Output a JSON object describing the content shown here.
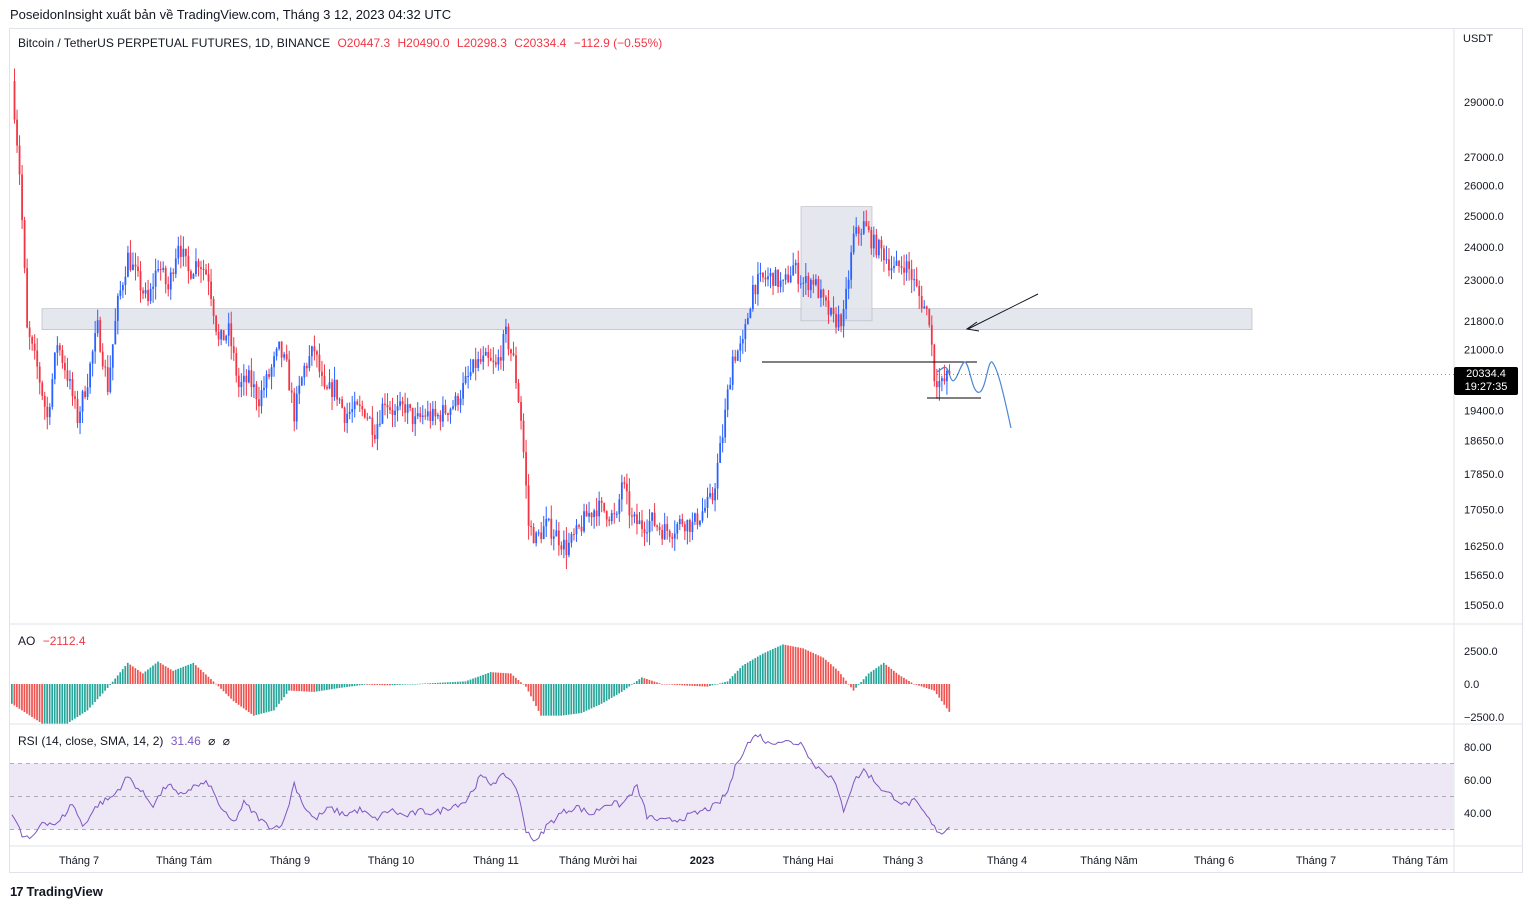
{
  "publisher_line": "PoseidonInsight xuất bản về TradingView.com, Tháng 3 12, 2023 04:32 UTC",
  "main_legend": {
    "symbol": "Bitcoin / TetherUS PERPETUAL FUTURES, 1D, BINANCE",
    "open": "O20447.3",
    "high": "H20490.0",
    "low": "L20298.3",
    "close": "C20334.4",
    "change": "−112.9 (−0.55%)"
  },
  "currency": "USDT",
  "last_price": {
    "price": "20334.4",
    "countdown": "19:27:35"
  },
  "ao_legend": {
    "name": "AO",
    "value": "−2112.4"
  },
  "rsi_legend": {
    "name": "RSI (14, close, SMA, 14, 2)",
    "value": "31.46",
    "extra1": "⌀",
    "extra2": "⌀"
  },
  "footer": {
    "brand_mark": "17",
    "brand": "TradingView"
  },
  "colors": {
    "up": "#2962ff",
    "down": "#f23645",
    "ao_up": "#26a69a",
    "ao_down": "#ef5350",
    "rsi": "#7e57c2",
    "rsi_band": "#ede7f6",
    "zone": "#e0e3eb",
    "projection": "#4a86d6"
  },
  "chart_data": [
    {
      "type": "candlestick",
      "title": "Bitcoin / TetherUS PERPETUAL FUTURES, 1D, BINANCE",
      "y_scale": "log",
      "y_ticks": [
        29000.0,
        27000.0,
        26000.0,
        25000.0,
        24000.0,
        23000.0,
        21800.0,
        21000.0,
        19400.0,
        18650.0,
        17850.0,
        17050.0,
        16250.0,
        15650.0,
        15050.0
      ],
      "x_ticks": [
        "Tháng 7",
        "Tháng Tám",
        "Tháng 9",
        "Tháng 10",
        "Tháng 11",
        "Tháng Mười hai",
        "2023",
        "Tháng Hai",
        "Tháng 3",
        "Tháng 4",
        "Tháng Năm",
        "Tháng 6",
        "Tháng 7",
        "Tháng Tám"
      ],
      "price_path": [
        [
          0,
          29800
        ],
        [
          3,
          26500
        ],
        [
          6,
          21500
        ],
        [
          10,
          20500
        ],
        [
          14,
          19200
        ],
        [
          18,
          21200
        ],
        [
          22,
          20300
        ],
        [
          26,
          19200
        ],
        [
          30,
          20200
        ],
        [
          34,
          21600
        ],
        [
          38,
          20000
        ],
        [
          42,
          22300
        ],
        [
          46,
          23700
        ],
        [
          50,
          23000
        ],
        [
          54,
          22300
        ],
        [
          58,
          23500
        ],
        [
          62,
          22700
        ],
        [
          66,
          24200
        ],
        [
          70,
          23200
        ],
        [
          74,
          23600
        ],
        [
          78,
          23100
        ],
        [
          82,
          21200
        ],
        [
          86,
          21500
        ],
        [
          90,
          20000
        ],
        [
          94,
          20200
        ],
        [
          98,
          19700
        ],
        [
          102,
          20300
        ],
        [
          106,
          21000
        ],
        [
          109,
          20500
        ],
        [
          112,
          19300
        ],
        [
          116,
          20500
        ],
        [
          120,
          21000
        ],
        [
          124,
          19800
        ],
        [
          128,
          20000
        ],
        [
          132,
          19300
        ],
        [
          136,
          19400
        ],
        [
          140,
          19400
        ],
        [
          144,
          18900
        ],
        [
          148,
          19700
        ],
        [
          152,
          19300
        ],
        [
          156,
          19500
        ],
        [
          160,
          19100
        ],
        [
          164,
          19300
        ],
        [
          168,
          19200
        ],
        [
          172,
          19400
        ],
        [
          176,
          19600
        ],
        [
          180,
          20100
        ],
        [
          184,
          20600
        ],
        [
          188,
          20700
        ],
        [
          192,
          20500
        ],
        [
          196,
          21400
        ],
        [
          199,
          20700
        ],
        [
          202,
          19200
        ],
        [
          205,
          16700
        ],
        [
          208,
          16400
        ],
        [
          212,
          16700
        ],
        [
          216,
          16500
        ],
        [
          220,
          16200
        ],
        [
          224,
          16500
        ],
        [
          228,
          16900
        ],
        [
          232,
          17100
        ],
        [
          236,
          17000
        ],
        [
          240,
          16800
        ],
        [
          242,
          17700
        ],
        [
          246,
          16800
        ],
        [
          250,
          16700
        ],
        [
          254,
          16800
        ],
        [
          258,
          16600
        ],
        [
          262,
          16600
        ],
        [
          266,
          16800
        ],
        [
          270,
          16700
        ],
        [
          274,
          17000
        ],
        [
          278,
          17300
        ],
        [
          282,
          18800
        ],
        [
          286,
          20800
        ],
        [
          290,
          21100
        ],
        [
          294,
          22800
        ],
        [
          298,
          23000
        ],
        [
          302,
          23100
        ],
        [
          306,
          22800
        ],
        [
          310,
          23400
        ],
        [
          314,
          22900
        ],
        [
          318,
          23000
        ],
        [
          322,
          22300
        ],
        [
          326,
          21800
        ],
        [
          330,
          21900
        ],
        [
          334,
          24300
        ],
        [
          338,
          24700
        ],
        [
          342,
          24100
        ],
        [
          346,
          23800
        ],
        [
          350,
          23300
        ],
        [
          354,
          23500
        ],
        [
          356,
          23300
        ],
        [
          360,
          22500
        ],
        [
          364,
          21900
        ],
        [
          366,
          20300
        ],
        [
          369,
          20050
        ],
        [
          372,
          20334
        ]
      ]
    },
    {
      "type": "bar",
      "title": "AO",
      "value": -2112.4,
      "y_ticks": [
        2500.0,
        0.0,
        -2500.0
      ],
      "profile": [
        [
          0,
          -1500
        ],
        [
          12,
          -3000
        ],
        [
          22,
          -3000
        ],
        [
          30,
          -2000
        ],
        [
          38,
          -300
        ],
        [
          46,
          1600
        ],
        [
          52,
          800
        ],
        [
          58,
          1700
        ],
        [
          64,
          1000
        ],
        [
          72,
          1600
        ],
        [
          80,
          200
        ],
        [
          88,
          -1300
        ],
        [
          96,
          -2400
        ],
        [
          104,
          -2000
        ],
        [
          110,
          -500
        ],
        [
          120,
          -600
        ],
        [
          130,
          -300
        ],
        [
          140,
          -50
        ],
        [
          150,
          -100
        ],
        [
          160,
          0
        ],
        [
          170,
          100
        ],
        [
          180,
          200
        ],
        [
          190,
          900
        ],
        [
          198,
          800
        ],
        [
          204,
          -200
        ],
        [
          210,
          -2400
        ],
        [
          218,
          -2400
        ],
        [
          226,
          -2200
        ],
        [
          234,
          -1500
        ],
        [
          242,
          -600
        ],
        [
          250,
          500
        ],
        [
          258,
          0
        ],
        [
          266,
          -100
        ],
        [
          276,
          -200
        ],
        [
          284,
          200
        ],
        [
          290,
          1400
        ],
        [
          298,
          2300
        ],
        [
          306,
          3000
        ],
        [
          314,
          2700
        ],
        [
          322,
          2000
        ],
        [
          328,
          1000
        ],
        [
          334,
          -500
        ],
        [
          340,
          800
        ],
        [
          346,
          1600
        ],
        [
          352,
          700
        ],
        [
          358,
          0
        ],
        [
          366,
          -500
        ],
        [
          372,
          -2112
        ]
      ]
    },
    {
      "type": "line",
      "title": "RSI (14, close, SMA, 14, 2)",
      "value": 31.46,
      "y_ticks": [
        80.0,
        60.0,
        40.0
      ],
      "band": [
        30,
        70
      ],
      "midline": 50,
      "profile": [
        [
          0,
          40
        ],
        [
          4,
          26
        ],
        [
          8,
          24
        ],
        [
          12,
          35
        ],
        [
          18,
          33
        ],
        [
          24,
          46
        ],
        [
          28,
          32
        ],
        [
          34,
          45
        ],
        [
          40,
          50
        ],
        [
          46,
          62
        ],
        [
          50,
          55
        ],
        [
          56,
          45
        ],
        [
          62,
          58
        ],
        [
          66,
          50
        ],
        [
          72,
          56
        ],
        [
          78,
          58
        ],
        [
          84,
          40
        ],
        [
          88,
          34
        ],
        [
          92,
          46
        ],
        [
          96,
          40
        ],
        [
          100,
          34
        ],
        [
          104,
          31
        ],
        [
          108,
          35
        ],
        [
          112,
          58
        ],
        [
          116,
          44
        ],
        [
          120,
          36
        ],
        [
          126,
          43
        ],
        [
          132,
          39
        ],
        [
          138,
          42
        ],
        [
          144,
          36
        ],
        [
          150,
          42
        ],
        [
          156,
          38
        ],
        [
          162,
          41
        ],
        [
          168,
          40
        ],
        [
          174,
          44
        ],
        [
          180,
          47
        ],
        [
          186,
          62
        ],
        [
          190,
          58
        ],
        [
          196,
          63
        ],
        [
          200,
          56
        ],
        [
          204,
          30
        ],
        [
          208,
          22
        ],
        [
          212,
          32
        ],
        [
          218,
          40
        ],
        [
          224,
          44
        ],
        [
          230,
          39
        ],
        [
          236,
          46
        ],
        [
          242,
          45
        ],
        [
          248,
          56
        ],
        [
          252,
          38
        ],
        [
          258,
          35
        ],
        [
          264,
          36
        ],
        [
          272,
          40
        ],
        [
          280,
          45
        ],
        [
          284,
          53
        ],
        [
          288,
          72
        ],
        [
          292,
          82
        ],
        [
          296,
          88
        ],
        [
          300,
          82
        ],
        [
          304,
          84
        ],
        [
          308,
          83
        ],
        [
          314,
          82
        ],
        [
          318,
          69
        ],
        [
          322,
          66
        ],
        [
          326,
          60
        ],
        [
          330,
          42
        ],
        [
          334,
          59
        ],
        [
          338,
          66
        ],
        [
          342,
          60
        ],
        [
          346,
          53
        ],
        [
          350,
          50
        ],
        [
          354,
          45
        ],
        [
          358,
          47
        ],
        [
          362,
          40
        ],
        [
          366,
          31
        ],
        [
          369,
          28
        ],
        [
          372,
          31
        ]
      ]
    }
  ]
}
